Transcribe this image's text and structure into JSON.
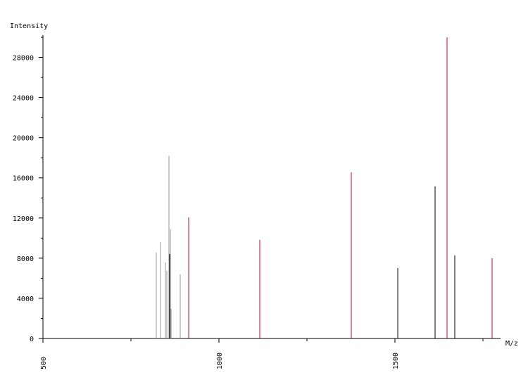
{
  "chart_data": {
    "type": "stick",
    "ylabel": "Intensity",
    "xlabel": "M/z",
    "xlim": [
      500,
      1800
    ],
    "ylim": [
      0,
      30000
    ],
    "xticks": [
      500,
      1000,
      1500
    ],
    "xminorticks": [
      750,
      1250,
      1750
    ],
    "yticks": [
      0,
      4000,
      8000,
      12000,
      16000,
      20000,
      24000,
      28000
    ],
    "yminorticks": [
      2000,
      6000,
      10000,
      14000,
      18000,
      22000,
      26000,
      30000
    ],
    "series": [
      {
        "color": "#999999",
        "x": [
          822,
          834,
          848,
          852,
          858,
          862,
          864,
          890
        ],
        "values": [
          8560,
          9610,
          7580,
          6740,
          18180,
          10880,
          2950,
          6390
        ]
      },
      {
        "color": "#000000",
        "x": [
          860,
          1508,
          1614,
          1670
        ],
        "values": [
          8420,
          7020,
          15160,
          8280
        ]
      },
      {
        "color": "#cc0033",
        "x": [
          914,
          1116,
          1376,
          1648,
          1776
        ],
        "values": [
          12070,
          9820,
          16560,
          30000,
          8000
        ]
      }
    ]
  }
}
